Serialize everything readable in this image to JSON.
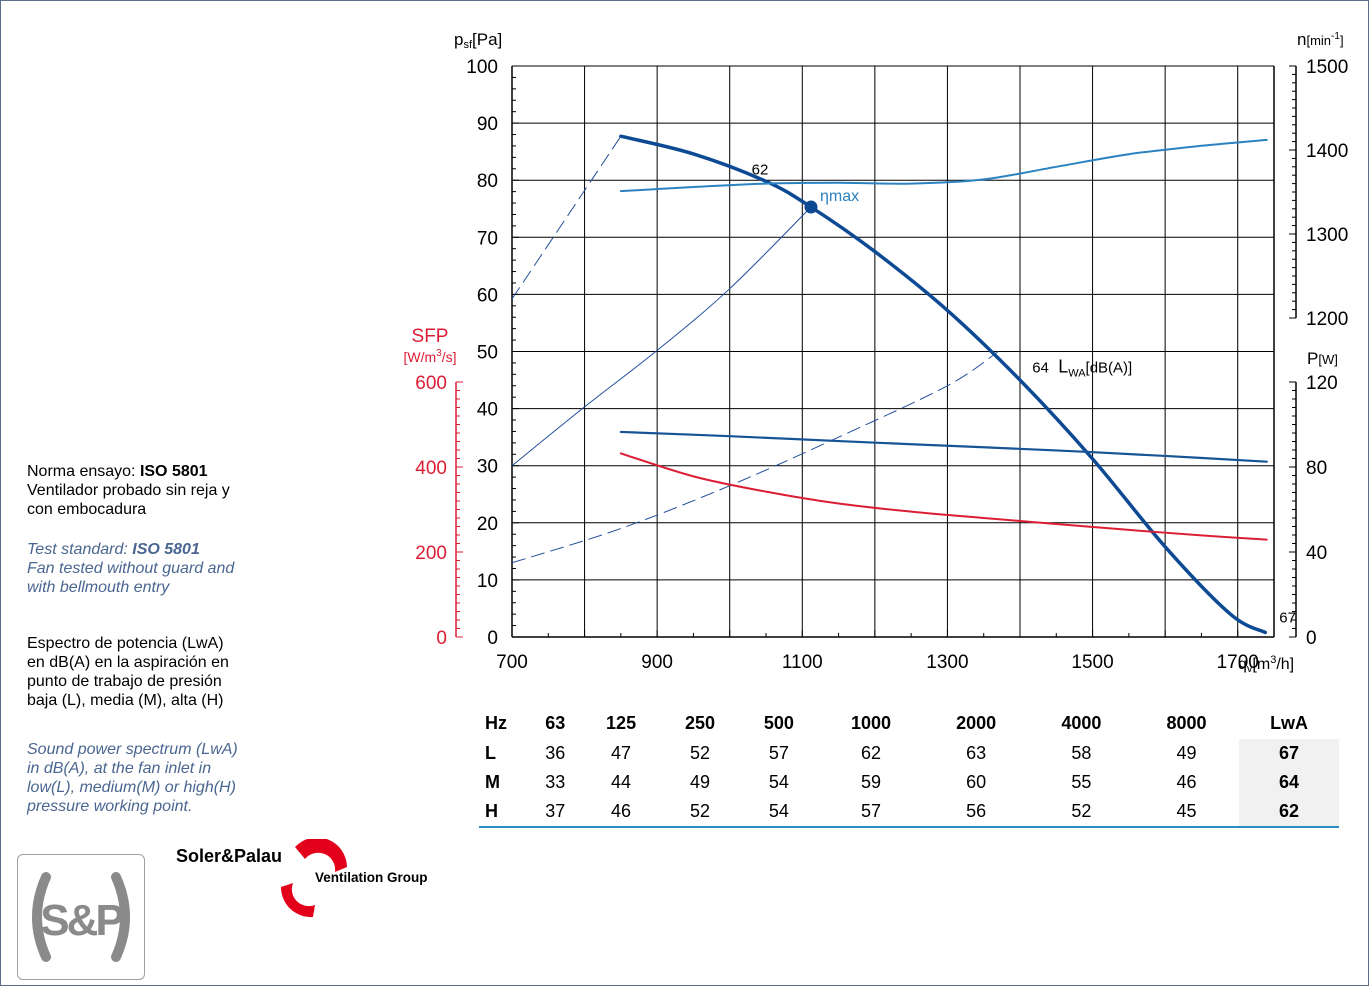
{
  "notes": {
    "es_standard_label": "Norma ensayo: ",
    "es_standard_value": "ISO 5801",
    "es_test_line1": "Ventilador probado sin reja y",
    "es_test_line2": "con embocadura",
    "en_standard_label": "Test standard: ",
    "en_standard_value": "ISO 5801",
    "en_test_line1": "Fan tested without guard and",
    "en_test_line2": "with bellmouth entry",
    "es_spectrum_lines": [
      "Espectro de potencia (LwA)",
      "en dB(A) en la aspiración en",
      "punto de trabajo de presión",
      "baja (L), media (M), alta (H)"
    ],
    "en_spectrum_lines": [
      "Sound power spectrum (LwA)",
      "in dB(A), at the fan inlet in",
      "low(L), medium(M) or high(H)",
      "pressure working point."
    ]
  },
  "chart_data": {
    "type": "line",
    "x_axis": {
      "label": "qv[m³/h]",
      "range": [
        700,
        1750
      ],
      "ticks": [
        700,
        900,
        1100,
        1300,
        1500,
        1700
      ]
    },
    "y_axes": {
      "pressure": {
        "label": "psf[Pa]",
        "range": [
          0,
          100
        ],
        "ticks": [
          0,
          10,
          20,
          30,
          40,
          50,
          60,
          70,
          80,
          90,
          100
        ]
      },
      "speed": {
        "label": "n[min⁻¹]",
        "range": [
          1200,
          1500
        ],
        "ticks": [
          1200,
          1300,
          1400,
          1500
        ]
      },
      "power": {
        "label": "P[W]",
        "range": [
          0,
          120
        ],
        "ticks": [
          0,
          40,
          80,
          120
        ]
      },
      "sfp": {
        "label_line1": "SFP",
        "label_line2": "[W/m³/s]",
        "range": [
          0,
          600
        ],
        "ticks": [
          0,
          200,
          400,
          600
        ]
      }
    },
    "grid": true,
    "series": [
      {
        "axis": "pressure",
        "points": [
          [
            850,
            87.7
          ],
          [
            950,
            84.6
          ],
          [
            1050,
            79.8
          ],
          [
            1112,
            75.3
          ],
          [
            1200,
            67.5
          ],
          [
            1300,
            57.2
          ],
          [
            1400,
            45.0
          ],
          [
            1500,
            31.2
          ],
          [
            1600,
            15.8
          ],
          [
            1690,
            4.0
          ],
          [
            1738,
            0.8
          ]
        ]
      },
      {
        "axis": "speed",
        "points": [
          [
            850,
            1351
          ],
          [
            950,
            1356
          ],
          [
            1050,
            1360
          ],
          [
            1150,
            1361
          ],
          [
            1250,
            1360
          ],
          [
            1350,
            1365
          ],
          [
            1450,
            1380
          ],
          [
            1550,
            1395
          ],
          [
            1650,
            1405
          ],
          [
            1740,
            1412
          ]
        ]
      },
      {
        "axis": "power",
        "points": [
          [
            850,
            96.5
          ],
          [
            1000,
            94.5
          ],
          [
            1150,
            92.2
          ],
          [
            1300,
            90.0
          ],
          [
            1450,
            87.8
          ],
          [
            1600,
            85.2
          ],
          [
            1740,
            82.5
          ]
        ]
      },
      {
        "axis": "sfp",
        "points": [
          [
            850,
            432
          ],
          [
            950,
            378
          ],
          [
            1050,
            342
          ],
          [
            1150,
            314
          ],
          [
            1250,
            295
          ],
          [
            1350,
            280
          ],
          [
            1450,
            266
          ],
          [
            1550,
            252
          ],
          [
            1650,
            239
          ],
          [
            1740,
            229
          ]
        ]
      }
    ],
    "system_curves": [
      {
        "style": "dashed",
        "points": [
          [
            700,
            59.2
          ],
          [
            850,
            87.7
          ]
        ]
      },
      {
        "style": "solid",
        "points": [
          [
            700,
            30.0
          ],
          [
            800,
            40.3
          ],
          [
            900,
            50.2
          ],
          [
            1000,
            61.0
          ],
          [
            1112,
            75.3
          ]
        ]
      },
      {
        "style": "dashed",
        "points": [
          [
            700,
            13.0
          ],
          [
            850,
            19.0
          ],
          [
            1000,
            26.5
          ],
          [
            1150,
            35.0
          ],
          [
            1300,
            44.0
          ],
          [
            1370,
            50.0
          ]
        ]
      }
    ],
    "annotations": [
      {
        "text": "62",
        "x": 1055,
        "y": 81.5
      },
      {
        "text": "ηmax",
        "x": 1112,
        "y": 75.3
      },
      {
        "text": "64",
        "text2": "LWA[dB(A)]",
        "x": 1370,
        "y": 47.0
      },
      {
        "text": "67",
        "x": 1738,
        "y": 1.5
      }
    ],
    "colors": {
      "pressure": "#0d4a93",
      "speed": "#2b82c0",
      "power": "#165496",
      "sfp": "#dc1e35",
      "system": "#214f9a",
      "axis": "#000000"
    }
  },
  "spectrum_table": {
    "headers": [
      "Hz",
      "63",
      "125",
      "250",
      "500",
      "1000",
      "2000",
      "4000",
      "8000",
      "LwA"
    ],
    "rows": [
      [
        "L",
        "36",
        "47",
        "52",
        "57",
        "62",
        "63",
        "58",
        "49",
        "67"
      ],
      [
        "M",
        "33",
        "44",
        "49",
        "54",
        "59",
        "60",
        "55",
        "46",
        "64"
      ],
      [
        "H",
        "37",
        "46",
        "52",
        "54",
        "57",
        "56",
        "52",
        "45",
        "62"
      ]
    ]
  },
  "brand": {
    "logo_text": "S&P",
    "name": "Soler&Palau",
    "subtitle": "Ventilation Group",
    "colors": {
      "logo_gray": "#8a8a8a",
      "red": "#e2001a"
    }
  }
}
